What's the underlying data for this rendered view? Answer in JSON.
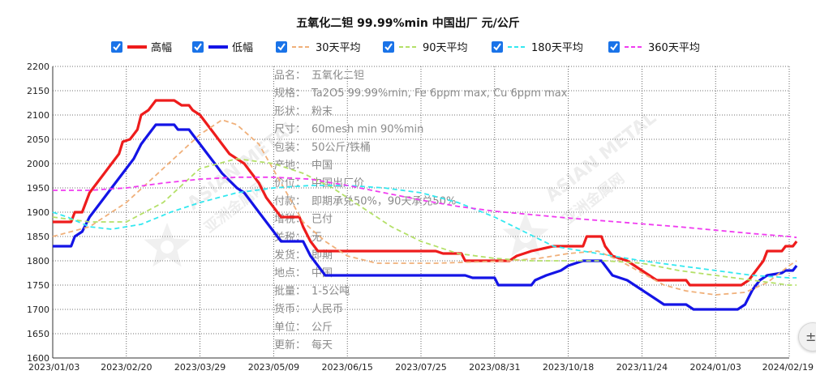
{
  "chart_data": {
    "type": "line",
    "title": "五氧化二钽 99.99%min 中国出厂 元/公斤",
    "x_ticks": [
      "2023/01/03",
      "2023/02/20",
      "2023/03/29",
      "2023/05/09",
      "2023/06/15",
      "2023/07/25",
      "2023/08/31",
      "2023/10/18",
      "2023/11/24",
      "2024/01/03",
      "2024/02/19"
    ],
    "ylim": [
      1600,
      2200
    ],
    "y_ticks": [
      1600,
      1650,
      1700,
      1750,
      1800,
      1850,
      1900,
      1950,
      2000,
      2050,
      2100,
      2150,
      2200
    ],
    "grid": true,
    "legend_position": "top",
    "series": [
      {
        "name": "高幅",
        "color": "#ee1c1c",
        "style": "solid",
        "checked": true,
        "points": [
          [
            0,
            1880
          ],
          [
            0.01,
            1880
          ],
          [
            0.025,
            1880
          ],
          [
            0.03,
            1900
          ],
          [
            0.04,
            1900
          ],
          [
            0.05,
            1940
          ],
          [
            0.06,
            1960
          ],
          [
            0.07,
            1980
          ],
          [
            0.08,
            2000
          ],
          [
            0.09,
            2020
          ],
          [
            0.095,
            2045
          ],
          [
            0.105,
            2050
          ],
          [
            0.115,
            2070
          ],
          [
            0.12,
            2100
          ],
          [
            0.13,
            2110
          ],
          [
            0.14,
            2130
          ],
          [
            0.165,
            2130
          ],
          [
            0.175,
            2120
          ],
          [
            0.185,
            2120
          ],
          [
            0.19,
            2110
          ],
          [
            0.2,
            2100
          ],
          [
            0.21,
            2080
          ],
          [
            0.22,
            2060
          ],
          [
            0.23,
            2040
          ],
          [
            0.24,
            2020
          ],
          [
            0.25,
            2010
          ],
          [
            0.26,
            2000
          ],
          [
            0.27,
            1980
          ],
          [
            0.28,
            1960
          ],
          [
            0.29,
            1930
          ],
          [
            0.3,
            1910
          ],
          [
            0.31,
            1890
          ],
          [
            0.335,
            1890
          ],
          [
            0.34,
            1870
          ],
          [
            0.35,
            1840
          ],
          [
            0.36,
            1820
          ],
          [
            0.52,
            1820
          ],
          [
            0.53,
            1815
          ],
          [
            0.555,
            1815
          ],
          [
            0.56,
            1800
          ],
          [
            0.62,
            1800
          ],
          [
            0.63,
            1810
          ],
          [
            0.65,
            1820
          ],
          [
            0.68,
            1830
          ],
          [
            0.72,
            1830
          ],
          [
            0.725,
            1850
          ],
          [
            0.745,
            1850
          ],
          [
            0.75,
            1830
          ],
          [
            0.76,
            1810
          ],
          [
            0.78,
            1800
          ],
          [
            0.79,
            1790
          ],
          [
            0.8,
            1780
          ],
          [
            0.81,
            1770
          ],
          [
            0.82,
            1760
          ],
          [
            0.86,
            1760
          ],
          [
            0.865,
            1750
          ],
          [
            0.935,
            1750
          ],
          [
            0.945,
            1760
          ],
          [
            0.955,
            1780
          ],
          [
            0.965,
            1800
          ],
          [
            0.97,
            1820
          ],
          [
            0.99,
            1820
          ],
          [
            0.995,
            1830
          ],
          [
            1.005,
            1830
          ],
          [
            1.01,
            1840
          ]
        ]
      },
      {
        "name": "低幅",
        "color": "#1414e6",
        "style": "solid",
        "checked": true,
        "points": [
          [
            0,
            1830
          ],
          [
            0.025,
            1830
          ],
          [
            0.03,
            1850
          ],
          [
            0.04,
            1860
          ],
          [
            0.05,
            1890
          ],
          [
            0.06,
            1910
          ],
          [
            0.07,
            1930
          ],
          [
            0.08,
            1950
          ],
          [
            0.09,
            1970
          ],
          [
            0.1,
            1990
          ],
          [
            0.11,
            2010
          ],
          [
            0.12,
            2040
          ],
          [
            0.13,
            2060
          ],
          [
            0.14,
            2080
          ],
          [
            0.165,
            2080
          ],
          [
            0.17,
            2070
          ],
          [
            0.185,
            2070
          ],
          [
            0.19,
            2060
          ],
          [
            0.2,
            2040
          ],
          [
            0.21,
            2020
          ],
          [
            0.22,
            2000
          ],
          [
            0.23,
            1980
          ],
          [
            0.24,
            1965
          ],
          [
            0.25,
            1950
          ],
          [
            0.26,
            1940
          ],
          [
            0.27,
            1920
          ],
          [
            0.28,
            1900
          ],
          [
            0.29,
            1880
          ],
          [
            0.3,
            1860
          ],
          [
            0.31,
            1840
          ],
          [
            0.34,
            1840
          ],
          [
            0.35,
            1810
          ],
          [
            0.36,
            1790
          ],
          [
            0.37,
            1770
          ],
          [
            0.56,
            1770
          ],
          [
            0.57,
            1765
          ],
          [
            0.6,
            1765
          ],
          [
            0.605,
            1750
          ],
          [
            0.65,
            1750
          ],
          [
            0.655,
            1760
          ],
          [
            0.67,
            1770
          ],
          [
            0.69,
            1780
          ],
          [
            0.7,
            1790
          ],
          [
            0.72,
            1800
          ],
          [
            0.745,
            1800
          ],
          [
            0.75,
            1790
          ],
          [
            0.76,
            1770
          ],
          [
            0.78,
            1760
          ],
          [
            0.79,
            1750
          ],
          [
            0.8,
            1740
          ],
          [
            0.81,
            1730
          ],
          [
            0.82,
            1720
          ],
          [
            0.83,
            1710
          ],
          [
            0.86,
            1710
          ],
          [
            0.87,
            1700
          ],
          [
            0.93,
            1700
          ],
          [
            0.94,
            1710
          ],
          [
            0.95,
            1740
          ],
          [
            0.96,
            1760
          ],
          [
            0.97,
            1770
          ],
          [
            0.99,
            1775
          ],
          [
            0.995,
            1780
          ],
          [
            1.005,
            1780
          ],
          [
            1.01,
            1790
          ]
        ]
      },
      {
        "name": "30天平均",
        "color": "#f0b07a",
        "style": "dashed",
        "checked": true,
        "points": [
          [
            0,
            1850
          ],
          [
            0.05,
            1870
          ],
          [
            0.1,
            1920
          ],
          [
            0.15,
            1990
          ],
          [
            0.2,
            2060
          ],
          [
            0.23,
            2090
          ],
          [
            0.25,
            2080
          ],
          [
            0.28,
            2040
          ],
          [
            0.31,
            1960
          ],
          [
            0.34,
            1880
          ],
          [
            0.37,
            1840
          ],
          [
            0.4,
            1810
          ],
          [
            0.44,
            1795
          ],
          [
            0.52,
            1795
          ],
          [
            0.58,
            1798
          ],
          [
            0.62,
            1800
          ],
          [
            0.66,
            1805
          ],
          [
            0.7,
            1815
          ],
          [
            0.74,
            1820
          ],
          [
            0.77,
            1800
          ],
          [
            0.8,
            1775
          ],
          [
            0.83,
            1750
          ],
          [
            0.86,
            1738
          ],
          [
            0.9,
            1730
          ],
          [
            0.94,
            1735
          ],
          [
            0.97,
            1755
          ],
          [
            1.0,
            1790
          ],
          [
            1.01,
            1800
          ]
        ]
      },
      {
        "name": "90天平均",
        "color": "#b4e068",
        "style": "dashed",
        "checked": true,
        "points": [
          [
            0,
            1890
          ],
          [
            0.05,
            1880
          ],
          [
            0.1,
            1880
          ],
          [
            0.15,
            1920
          ],
          [
            0.2,
            1990
          ],
          [
            0.25,
            2010
          ],
          [
            0.3,
            2000
          ],
          [
            0.34,
            1980
          ],
          [
            0.38,
            1950
          ],
          [
            0.42,
            1910
          ],
          [
            0.46,
            1870
          ],
          [
            0.5,
            1840
          ],
          [
            0.55,
            1815
          ],
          [
            0.6,
            1805
          ],
          [
            0.65,
            1800
          ],
          [
            0.7,
            1800
          ],
          [
            0.75,
            1800
          ],
          [
            0.8,
            1795
          ],
          [
            0.85,
            1780
          ],
          [
            0.9,
            1770
          ],
          [
            0.95,
            1760
          ],
          [
            1.0,
            1750
          ],
          [
            1.01,
            1750
          ]
        ]
      },
      {
        "name": "180天平均",
        "color": "#33e8f0",
        "style": "dashed",
        "checked": true,
        "points": [
          [
            0,
            1900
          ],
          [
            0.02,
            1890
          ],
          [
            0.05,
            1870
          ],
          [
            0.08,
            1865
          ],
          [
            0.12,
            1875
          ],
          [
            0.16,
            1900
          ],
          [
            0.2,
            1920
          ],
          [
            0.25,
            1940
          ],
          [
            0.3,
            1950
          ],
          [
            0.35,
            1955
          ],
          [
            0.4,
            1955
          ],
          [
            0.45,
            1950
          ],
          [
            0.5,
            1940
          ],
          [
            0.55,
            1920
          ],
          [
            0.6,
            1890
          ],
          [
            0.64,
            1860
          ],
          [
            0.68,
            1830
          ],
          [
            0.72,
            1820
          ],
          [
            0.76,
            1810
          ],
          [
            0.8,
            1800
          ],
          [
            0.85,
            1790
          ],
          [
            0.9,
            1780
          ],
          [
            0.95,
            1770
          ],
          [
            1.0,
            1765
          ],
          [
            1.01,
            1765
          ]
        ]
      },
      {
        "name": "360天平均",
        "color": "#f03cf0",
        "style": "dashed",
        "checked": true,
        "points": [
          [
            0,
            1945
          ],
          [
            0.05,
            1945
          ],
          [
            0.1,
            1950
          ],
          [
            0.15,
            1960
          ],
          [
            0.2,
            1968
          ],
          [
            0.25,
            1972
          ],
          [
            0.3,
            1972
          ],
          [
            0.35,
            1968
          ],
          [
            0.4,
            1955
          ],
          [
            0.45,
            1940
          ],
          [
            0.5,
            1925
          ],
          [
            0.55,
            1912
          ],
          [
            0.6,
            1902
          ],
          [
            0.65,
            1895
          ],
          [
            0.7,
            1888
          ],
          [
            0.75,
            1882
          ],
          [
            0.8,
            1876
          ],
          [
            0.85,
            1870
          ],
          [
            0.9,
            1863
          ],
          [
            0.95,
            1856
          ],
          [
            1.0,
            1850
          ],
          [
            1.01,
            1848
          ]
        ]
      }
    ]
  },
  "info_panel": [
    {
      "label": "品名：",
      "value": "五氧化二钽"
    },
    {
      "label": "规格：",
      "value": "Ta2O5 99.99%min, Fe 6ppm max, Cu 6ppm max"
    },
    {
      "label": "形状：",
      "value": "粉末"
    },
    {
      "label": "尺寸：",
      "value": "60mesh min 90%min"
    },
    {
      "label": "包装：",
      "value": "50公斤/铁桶"
    },
    {
      "label": "产地：",
      "value": "中国"
    },
    {
      "label": "价位：",
      "value": "中国出厂价"
    },
    {
      "label": "付款：",
      "value": "即期承兑50%，90天承兑50%"
    },
    {
      "label": "增税：",
      "value": "已付"
    },
    {
      "label": "关税：",
      "value": "无"
    },
    {
      "label": "发货：",
      "value": "即期"
    },
    {
      "label": "地点：",
      "value": "中国"
    },
    {
      "label": "批量：",
      "value": "1-5公吨"
    },
    {
      "label": "货币：",
      "value": "人民币"
    },
    {
      "label": "单位：",
      "value": "公斤"
    },
    {
      "label": "更新：",
      "value": "每天"
    }
  ],
  "watermark": {
    "text_en": "ASIAN METAL",
    "text_cn": "亚洲金属网"
  },
  "side_button_icon": "plus-minus-icon"
}
